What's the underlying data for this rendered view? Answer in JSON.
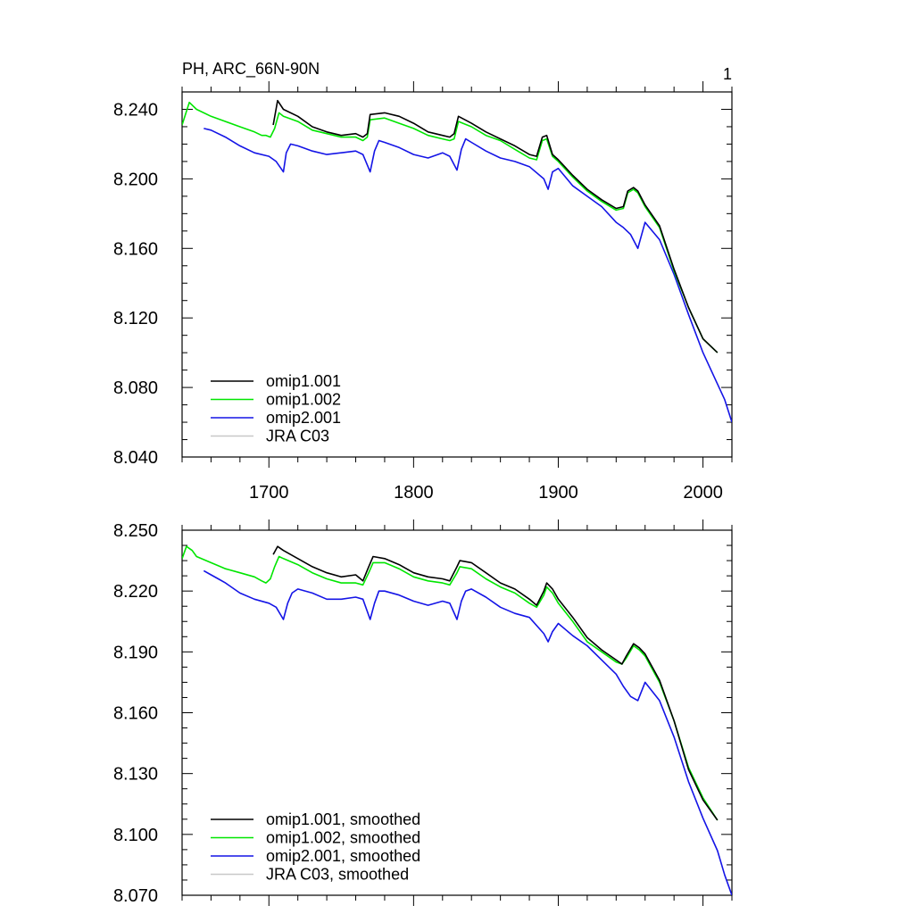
{
  "figure": {
    "title_left": "PH, ARC_66N-90N",
    "title_right": "1"
  },
  "chart_data": [
    {
      "type": "line",
      "title": "PH, ARC_66N-90N",
      "xlim": [
        1640,
        2020
      ],
      "ylim": [
        8.04,
        8.25
      ],
      "xticks": [
        1700,
        1800,
        1900,
        2000
      ],
      "xtick_labels": [
        "1700",
        "1800",
        "1900",
        "2000"
      ],
      "yticks": [
        8.04,
        8.08,
        8.12,
        8.16,
        8.2,
        8.24
      ],
      "ytick_labels": [
        "8.040",
        "8.080",
        "8.120",
        "8.160",
        "8.200",
        "8.240"
      ],
      "legend_position": "bottom-left",
      "series": [
        {
          "name": "omip1.001",
          "color": "#000000",
          "x": [
            1703,
            1706,
            1710,
            1720,
            1730,
            1740,
            1750,
            1760,
            1765,
            1768,
            1770,
            1780,
            1790,
            1800,
            1810,
            1820,
            1825,
            1828,
            1831,
            1840,
            1850,
            1860,
            1870,
            1880,
            1885,
            1889,
            1892,
            1896,
            1900,
            1910,
            1920,
            1930,
            1940,
            1945,
            1948,
            1952,
            1955,
            1960,
            1970,
            1980,
            1990,
            2000,
            2010
          ],
          "values": [
            8.231,
            8.245,
            8.24,
            8.236,
            8.23,
            8.227,
            8.225,
            8.226,
            8.224,
            8.226,
            8.237,
            8.238,
            8.236,
            8.232,
            8.227,
            8.225,
            8.224,
            8.226,
            8.236,
            8.232,
            8.227,
            8.223,
            8.219,
            8.214,
            8.213,
            8.224,
            8.225,
            8.214,
            8.211,
            8.202,
            8.194,
            8.188,
            8.183,
            8.184,
            8.193,
            8.195,
            8.193,
            8.185,
            8.173,
            8.148,
            8.126,
            8.108,
            8.1
          ]
        },
        {
          "name": "omip1.002",
          "color": "#00e600",
          "x": [
            1640,
            1645,
            1650,
            1660,
            1670,
            1680,
            1690,
            1695,
            1698,
            1701,
            1704,
            1707,
            1710,
            1720,
            1730,
            1740,
            1750,
            1760,
            1765,
            1768,
            1770,
            1780,
            1790,
            1800,
            1810,
            1820,
            1825,
            1828,
            1831,
            1840,
            1850,
            1860,
            1870,
            1880,
            1885,
            1889,
            1892,
            1896,
            1900,
            1910,
            1920,
            1930,
            1940,
            1945,
            1948,
            1952,
            1955,
            1960,
            1970,
            1980,
            1990,
            2000,
            2010
          ],
          "values": [
            8.231,
            8.244,
            8.24,
            8.236,
            8.233,
            8.23,
            8.227,
            8.225,
            8.225,
            8.224,
            8.229,
            8.238,
            8.236,
            8.233,
            8.228,
            8.226,
            8.224,
            8.224,
            8.222,
            8.224,
            8.234,
            8.235,
            8.232,
            8.229,
            8.225,
            8.223,
            8.222,
            8.223,
            8.233,
            8.23,
            8.225,
            8.222,
            8.217,
            8.212,
            8.211,
            8.222,
            8.223,
            8.213,
            8.21,
            8.201,
            8.193,
            8.187,
            8.182,
            8.183,
            8.192,
            8.194,
            8.192,
            8.184,
            8.172,
            8.147,
            8.126,
            8.108,
            8.1
          ]
        },
        {
          "name": "omip2.001",
          "color": "#1414e6",
          "x": [
            1655,
            1660,
            1670,
            1680,
            1690,
            1700,
            1705,
            1710,
            1712,
            1715,
            1720,
            1730,
            1740,
            1750,
            1760,
            1765,
            1770,
            1773,
            1776,
            1780,
            1790,
            1800,
            1810,
            1820,
            1825,
            1830,
            1833,
            1836,
            1840,
            1850,
            1860,
            1870,
            1880,
            1890,
            1893,
            1896,
            1900,
            1910,
            1920,
            1930,
            1940,
            1945,
            1950,
            1955,
            1960,
            1970,
            1980,
            1990,
            2000,
            2010,
            2015,
            2020
          ],
          "values": [
            8.229,
            8.228,
            8.224,
            8.219,
            8.215,
            8.213,
            8.21,
            8.204,
            8.215,
            8.22,
            8.219,
            8.216,
            8.214,
            8.215,
            8.216,
            8.214,
            8.204,
            8.216,
            8.222,
            8.221,
            8.218,
            8.214,
            8.212,
            8.215,
            8.213,
            8.205,
            8.217,
            8.223,
            8.221,
            8.216,
            8.212,
            8.21,
            8.207,
            8.2,
            8.194,
            8.204,
            8.206,
            8.196,
            8.19,
            8.184,
            8.175,
            8.172,
            8.168,
            8.16,
            8.175,
            8.165,
            8.145,
            8.122,
            8.1,
            8.082,
            8.073,
            8.06
          ]
        },
        {
          "name": "JRA C03",
          "color": "#c8c8c8",
          "x": [],
          "values": []
        }
      ]
    },
    {
      "type": "line",
      "title": "",
      "xlim": [
        1640,
        2020
      ],
      "ylim": [
        8.07,
        8.25
      ],
      "xticks": [
        1700,
        1800,
        1900,
        2000
      ],
      "yticks": [
        8.07,
        8.1,
        8.13,
        8.16,
        8.19,
        8.22,
        8.25
      ],
      "ytick_labels": [
        "8.070",
        "8.100",
        "8.130",
        "8.160",
        "8.190",
        "8.220",
        "8.250"
      ],
      "legend_position": "bottom-left",
      "series": [
        {
          "name": "omip1.001, smoothed",
          "color": "#000000",
          "x": [
            1703,
            1706,
            1710,
            1720,
            1730,
            1740,
            1750,
            1760,
            1765,
            1769,
            1772,
            1780,
            1790,
            1800,
            1810,
            1820,
            1825,
            1830,
            1832,
            1840,
            1850,
            1860,
            1870,
            1880,
            1885,
            1890,
            1892,
            1896,
            1900,
            1910,
            1920,
            1930,
            1940,
            1944,
            1947,
            1952,
            1956,
            1960,
            1970,
            1980,
            1990,
            2000,
            2010
          ],
          "values": [
            8.238,
            8.242,
            8.24,
            8.236,
            8.232,
            8.229,
            8.227,
            8.228,
            8.225,
            8.232,
            8.237,
            8.236,
            8.233,
            8.229,
            8.227,
            8.226,
            8.225,
            8.232,
            8.235,
            8.234,
            8.229,
            8.224,
            8.221,
            8.216,
            8.213,
            8.22,
            8.224,
            8.221,
            8.216,
            8.207,
            8.197,
            8.191,
            8.186,
            8.184,
            8.188,
            8.194,
            8.192,
            8.189,
            8.176,
            8.156,
            8.132,
            8.117,
            8.107
          ]
        },
        {
          "name": "omip1.002, smoothed",
          "color": "#00e600",
          "x": [
            1640,
            1643,
            1647,
            1650,
            1660,
            1670,
            1680,
            1690,
            1695,
            1698,
            1701,
            1704,
            1707,
            1710,
            1720,
            1730,
            1740,
            1750,
            1760,
            1765,
            1769,
            1772,
            1780,
            1790,
            1800,
            1810,
            1820,
            1825,
            1830,
            1832,
            1840,
            1850,
            1860,
            1870,
            1880,
            1885,
            1890,
            1892,
            1896,
            1900,
            1910,
            1920,
            1930,
            1940,
            1944,
            1947,
            1952,
            1956,
            1960,
            1970,
            1980,
            1990,
            2000,
            2010
          ],
          "values": [
            8.236,
            8.242,
            8.24,
            8.237,
            8.234,
            8.231,
            8.229,
            8.227,
            8.225,
            8.224,
            8.226,
            8.232,
            8.237,
            8.236,
            8.233,
            8.229,
            8.226,
            8.224,
            8.224,
            8.223,
            8.229,
            8.234,
            8.234,
            8.231,
            8.227,
            8.225,
            8.224,
            8.223,
            8.229,
            8.232,
            8.231,
            8.226,
            8.222,
            8.219,
            8.214,
            8.212,
            8.218,
            8.222,
            8.219,
            8.214,
            8.205,
            8.195,
            8.19,
            8.185,
            8.184,
            8.187,
            8.193,
            8.191,
            8.188,
            8.175,
            8.156,
            8.133,
            8.118,
            8.107
          ]
        },
        {
          "name": "omip2.001, smoothed",
          "color": "#1414e6",
          "x": [
            1655,
            1660,
            1665,
            1670,
            1680,
            1690,
            1700,
            1705,
            1710,
            1713,
            1716,
            1720,
            1730,
            1740,
            1750,
            1760,
            1765,
            1770,
            1773,
            1776,
            1780,
            1790,
            1800,
            1810,
            1820,
            1825,
            1830,
            1833,
            1836,
            1840,
            1850,
            1860,
            1870,
            1880,
            1890,
            1893,
            1896,
            1900,
            1910,
            1920,
            1930,
            1940,
            1945,
            1950,
            1955,
            1960,
            1970,
            1980,
            1990,
            2000,
            2010,
            2015,
            2020
          ],
          "values": [
            8.23,
            8.228,
            8.226,
            8.224,
            8.219,
            8.216,
            8.214,
            8.212,
            8.206,
            8.214,
            8.219,
            8.221,
            8.219,
            8.216,
            8.216,
            8.217,
            8.216,
            8.206,
            8.214,
            8.22,
            8.22,
            8.218,
            8.215,
            8.213,
            8.215,
            8.214,
            8.206,
            8.215,
            8.22,
            8.221,
            8.217,
            8.212,
            8.209,
            8.207,
            8.199,
            8.195,
            8.2,
            8.204,
            8.198,
            8.193,
            8.186,
            8.179,
            8.173,
            8.168,
            8.166,
            8.175,
            8.166,
            8.148,
            8.126,
            8.108,
            8.092,
            8.08,
            8.07
          ]
        },
        {
          "name": "JRA C03, smoothed",
          "color": "#c8c8c8",
          "x": [],
          "values": []
        }
      ]
    }
  ]
}
